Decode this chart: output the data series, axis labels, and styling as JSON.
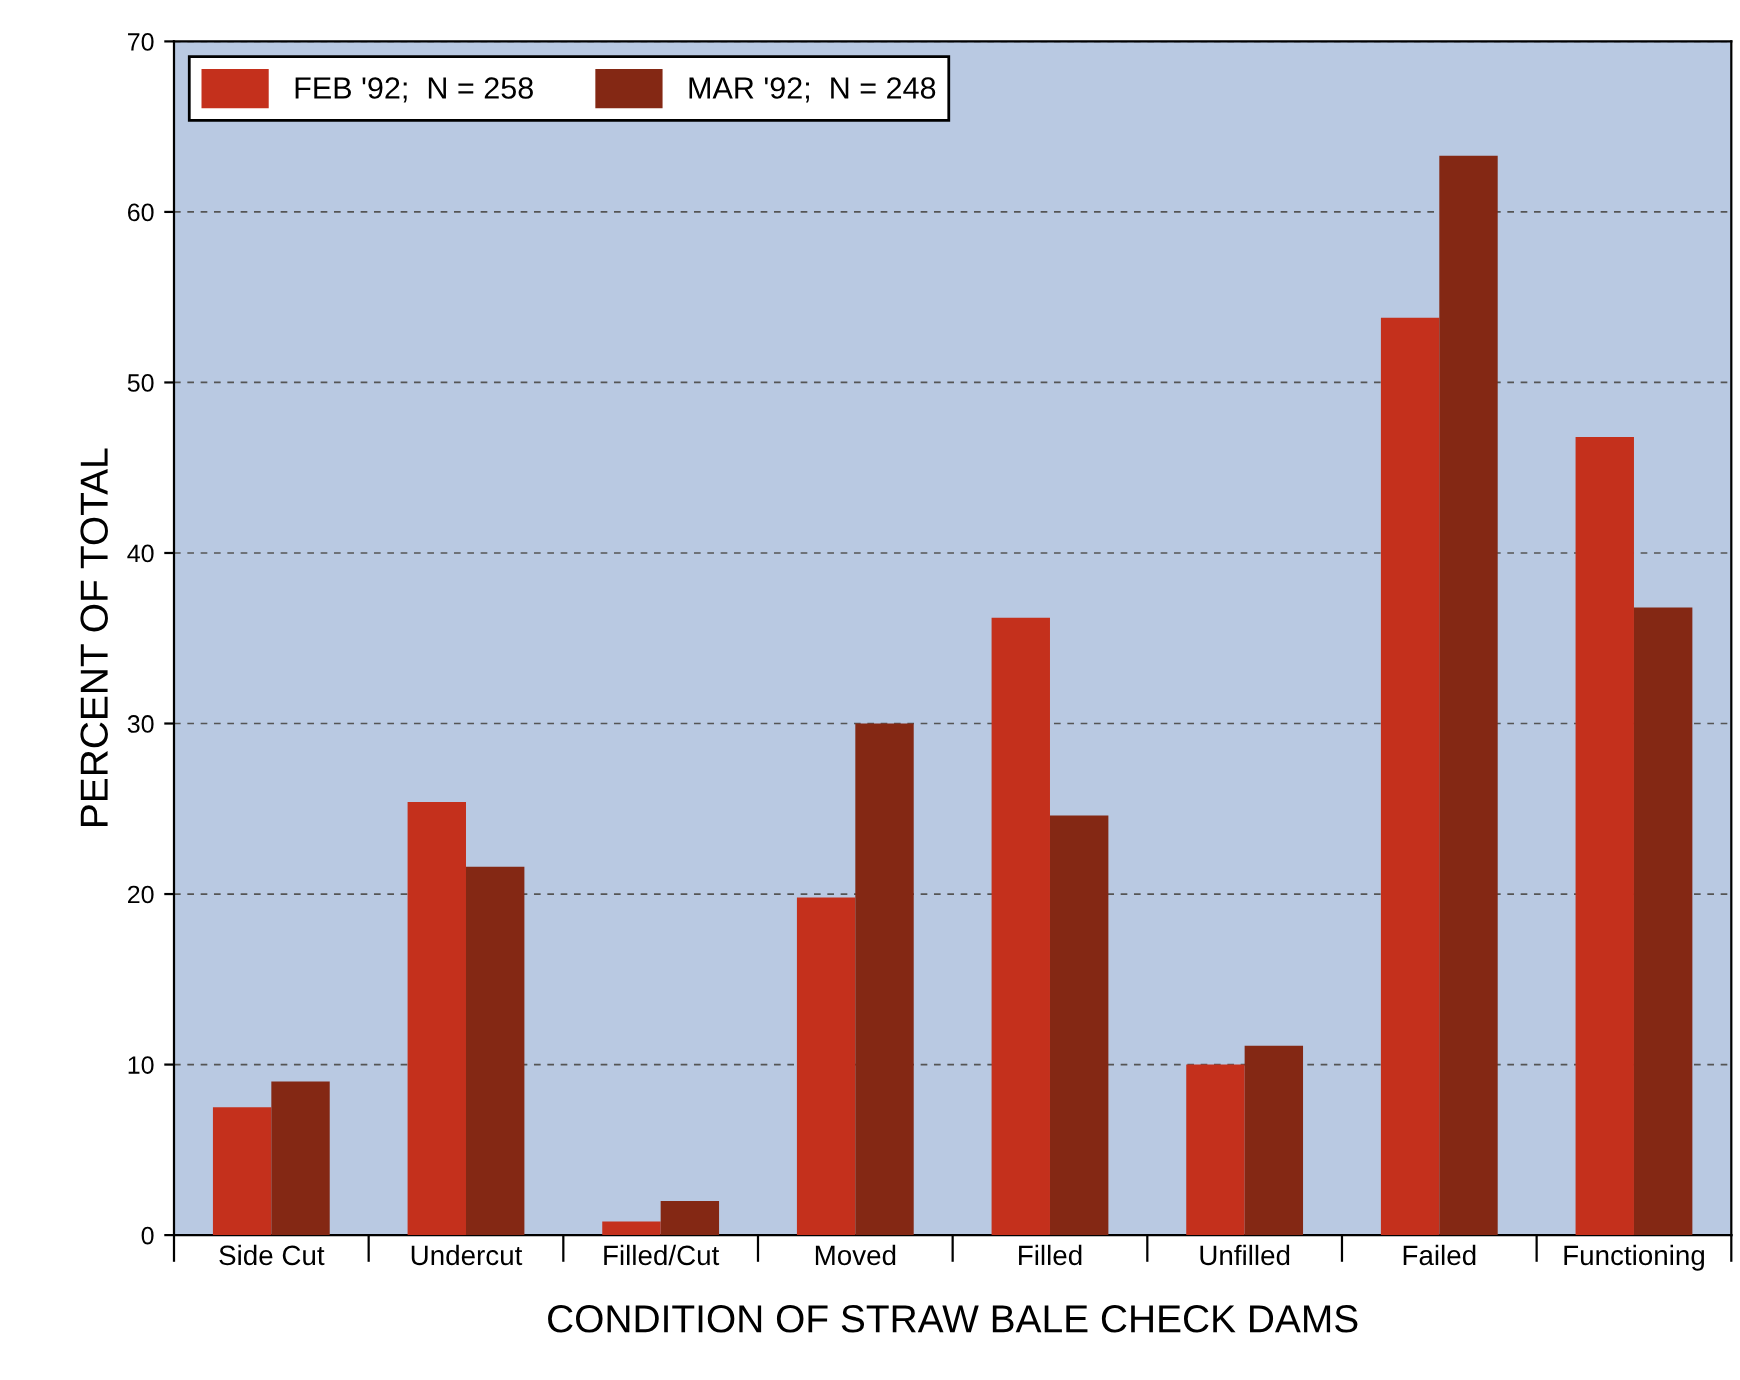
{
  "chart_data": {
    "type": "bar",
    "xlabel": "CONDITION OF STRAW BALE CHECK DAMS",
    "ylabel": "PERCENT OF TOTAL",
    "categories": [
      "Side Cut",
      "Undercut",
      "Filled/Cut",
      "Moved",
      "Filled",
      "Unfilled",
      "Failed",
      "Functioning"
    ],
    "series": [
      {
        "name": "FEB '92;  N = 258",
        "color": "#c4301c",
        "values": [
          7.5,
          25.4,
          0.8,
          19.8,
          36.2,
          10.0,
          53.8,
          46.8
        ]
      },
      {
        "name": "MAR '92;  N = 248",
        "color": "#842814",
        "values": [
          9.0,
          21.6,
          2.0,
          30.0,
          24.6,
          11.1,
          63.3,
          36.8
        ]
      }
    ],
    "ylim": [
      0,
      70
    ],
    "yticks": [
      0,
      10,
      20,
      30,
      40,
      50,
      60,
      70
    ],
    "grid": "y",
    "legend": "top left"
  }
}
